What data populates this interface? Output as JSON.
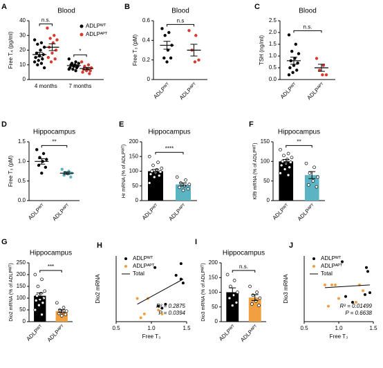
{
  "chart_data": [
    {
      "letter": "A",
      "type": "grouped_dot",
      "title": "Blood",
      "ylabel": "Free T₄ (pg/ml)",
      "ylim": [
        0,
        40
      ],
      "yticks": [
        0,
        10,
        20,
        30,
        40
      ],
      "categories": [
        "4 months",
        "7 months"
      ],
      "legend": [
        {
          "name": "ADLPᵂᵀ",
          "color": "#000000"
        },
        {
          "name": "ADLPᴬᴾᵀ",
          "color": "#d73a2e"
        }
      ],
      "groups": [
        {
          "series": 0,
          "points": [
            27,
            25,
            24,
            22,
            20,
            18,
            17,
            16,
            15,
            14,
            13,
            12,
            11,
            10,
            8
          ],
          "mean": 17,
          "sem": 1.5
        },
        {
          "series": 1,
          "points": [
            35,
            30,
            28,
            27,
            25,
            22,
            20,
            18,
            15,
            14,
            12
          ],
          "mean": 22,
          "sem": 2.3
        },
        {
          "series": 0,
          "points": [
            14,
            12,
            11,
            11,
            10,
            10,
            9,
            9,
            8,
            8,
            7,
            7,
            6
          ],
          "mean": 9.5,
          "sem": 0.6
        },
        {
          "series": 1,
          "points": [
            12,
            10,
            9,
            8,
            7,
            7,
            6,
            6,
            5,
            4
          ],
          "mean": 7.5,
          "sem": 0.8
        }
      ],
      "annotations": [
        {
          "text": "n.s.",
          "from": 0,
          "to": 1
        },
        {
          "text": "*",
          "from": 2,
          "to": 3
        }
      ]
    },
    {
      "letter": "B",
      "type": "dot",
      "title": "Blood",
      "ylabel": "Free T₃ (pM)",
      "ylim": [
        0,
        0.6
      ],
      "yticks": [
        0,
        0.2,
        0.4,
        0.6
      ],
      "groups": [
        {
          "name": "ADLPᵂᵀ",
          "color": "#000000",
          "points": [
            0.52,
            0.48,
            0.45,
            0.35,
            0.3,
            0.22,
            0.22,
            0.18
          ],
          "mean": 0.35,
          "sem": 0.04
        },
        {
          "name": "ADLPᴬᴾᵀ",
          "color": "#d73a2e",
          "points": [
            0.5,
            0.45,
            0.3,
            0.2,
            0.18
          ],
          "mean": 0.3,
          "sem": 0.06
        }
      ],
      "annotations": [
        {
          "text": "n.s",
          "from": 0,
          "to": 1
        }
      ]
    },
    {
      "letter": "C",
      "type": "dot",
      "title": "Blood",
      "ylabel": "TSH (ng/ml)",
      "ylim": [
        0,
        2.5
      ],
      "yticks": [
        {
          "value": 0,
          "label": "0.0"
        },
        0.5,
        {
          "value": 1,
          "label": "1.0"
        },
        1.5,
        {
          "value": 2,
          "label": "2.0"
        },
        2.5
      ],
      "groups": [
        {
          "name": "ADLPᵂᵀ",
          "color": "#000000",
          "points": [
            1.9,
            1.5,
            1.2,
            1.1,
            0.9,
            0.8,
            0.7,
            0.6,
            0.5,
            0.4,
            0.3,
            0.2
          ],
          "mean": 0.8,
          "sem": 0.15
        },
        {
          "name": "ADLPᴬᴾᵀ",
          "color": "#d73a2e",
          "points": [
            0.9,
            0.6,
            0.4,
            0.2,
            0.2
          ],
          "mean": 0.5,
          "sem": 0.15
        }
      ],
      "annotations": [
        {
          "text": "n.s.",
          "from": 0,
          "to": 1
        }
      ]
    },
    {
      "letter": "D",
      "type": "dot",
      "title": "Hippocampus",
      "ylabel": "Free T₃ (pM)",
      "ylim": [
        0,
        1.5
      ],
      "yticks": [
        {
          "value": 0,
          "label": "0.0"
        },
        0.5,
        {
          "value": 1,
          "label": "1.0"
        },
        1.5
      ],
      "groups": [
        {
          "name": "ADLPᵂᵀ",
          "color": "#000000",
          "points": [
            1.3,
            1.2,
            1.1,
            1.05,
            1.0,
            0.9,
            0.85,
            0.7
          ],
          "mean": 1.0,
          "sem": 0.07
        },
        {
          "name": "ADLPᴬᴾᵀ",
          "color": "#5ab4c4",
          "points": [
            0.8,
            0.75,
            0.72,
            0.7,
            0.68,
            0.65,
            0.6
          ],
          "mean": 0.7,
          "sem": 0.03
        }
      ],
      "annotations": [
        {
          "text": "**",
          "from": 0,
          "to": 1
        }
      ]
    },
    {
      "letter": "E",
      "type": "bar_dot",
      "title": "Hippocampus",
      "ylabel": "Hr mRNA (% of ADLPᵂᵀ)",
      "ylim": [
        0,
        200
      ],
      "yticks": [
        0,
        50,
        100,
        150,
        200
      ],
      "groups": [
        {
          "name": "ADLPᵂᵀ",
          "color": "#000000",
          "points": [
            150,
            130,
            120,
            110,
            105,
            100,
            98,
            95,
            90,
            85,
            80,
            60
          ],
          "mean": 100,
          "sem": 6
        },
        {
          "name": "ADLPᴬᴾᵀ",
          "color": "#5ab4c4",
          "points": [
            80,
            70,
            60,
            55,
            50,
            45,
            40,
            35
          ],
          "mean": 55,
          "sem": 5
        }
      ],
      "annotations": [
        {
          "text": "****",
          "from": 0,
          "to": 1
        }
      ]
    },
    {
      "letter": "F",
      "type": "bar_dot",
      "title": "Hippocampus",
      "ylabel": "Klf9 mRNA (% of ADLPᵂᵀ)",
      "ylim": [
        0,
        150
      ],
      "yticks": [
        0,
        50,
        100,
        150
      ],
      "groups": [
        {
          "name": "ADLPᵂᵀ",
          "color": "#000000",
          "points": [
            130,
            120,
            115,
            110,
            105,
            100,
            98,
            95,
            90,
            85,
            80,
            70,
            65
          ],
          "mean": 100,
          "sem": 5
        },
        {
          "name": "ADLPᴬᴾᵀ",
          "color": "#5ab4c4",
          "points": [
            95,
            85,
            70,
            60,
            50,
            40,
            35
          ],
          "mean": 65,
          "sem": 9
        }
      ],
      "annotations": [
        {
          "text": "**",
          "from": 0,
          "to": 1
        }
      ]
    },
    {
      "letter": "G",
      "type": "bar_dot",
      "title": "Hippocampus",
      "ylabel": "Dio2 mRNA (% of ADLPᵂᵀ)",
      "ylim": [
        0,
        250
      ],
      "yticks": [
        0,
        50,
        100,
        150,
        200,
        250
      ],
      "groups": [
        {
          "name": "ADLPᵂᵀ",
          "color": "#000000",
          "points": [
            200,
            180,
            150,
            130,
            120,
            110,
            100,
            95,
            90,
            80,
            70,
            50,
            30
          ],
          "mean": 110,
          "sem": 12
        },
        {
          "name": "ADLPᴬᴾᵀ",
          "color": "#f0a040",
          "points": [
            80,
            60,
            50,
            45,
            40,
            35,
            30,
            25
          ],
          "mean": 45,
          "sem": 6
        }
      ],
      "annotations": [
        {
          "text": "***",
          "from": 0,
          "to": 1
        }
      ]
    },
    {
      "letter": "H",
      "type": "scatter",
      "ylabel": "Dio2 mRNA",
      "xlabel": "Free T₃",
      "xlim": [
        0.5,
        1.5
      ],
      "xticks": [
        0.5,
        {
          "value": 1,
          "label": "1.0"
        },
        1.5
      ],
      "ylim": [
        0,
        170
      ],
      "series": [
        {
          "name": "ADLPᵂᵀ",
          "color": "#000000",
          "x": [
            1.05,
            1.35,
            1.42,
            1.45,
            1.42,
            1.1,
            1.15,
            1.2
          ],
          "y": [
            140,
            120,
            150,
            100,
            110,
            40,
            35,
            45
          ]
        },
        {
          "name": "ADLPᴬᴾᵀ",
          "color": "#f0a040",
          "x": [
            0.8,
            0.95,
            0.9,
            1.1,
            1.15,
            0.85
          ],
          "y": [
            60,
            60,
            20,
            30,
            20,
            10
          ]
        },
        {
          "name": "Total",
          "color": "#000000",
          "line": true,
          "x": [
            0.8,
            1.45
          ],
          "y": [
            45,
            110
          ]
        }
      ],
      "annotations": [
        "R² = 0.2875",
        "P = 0.0394"
      ]
    },
    {
      "letter": "I",
      "type": "bar_dot",
      "title": "Hippocampus",
      "ylabel": "Dio3 mRNA (% of ADLPᵂᵀ)",
      "ylim": [
        0,
        200
      ],
      "yticks": [
        0,
        50,
        100,
        150,
        200
      ],
      "groups": [
        {
          "name": "ADLPᵂᵀ",
          "color": "#000000",
          "points": [
            160,
            140,
            120,
            100,
            90,
            80,
            65,
            55
          ],
          "mean": 100,
          "sem": 15
        },
        {
          "name": "ADLPᴬᴾᵀ",
          "color": "#f0a040",
          "points": [
            120,
            100,
            90,
            80,
            70,
            60,
            55
          ],
          "mean": 82,
          "sem": 10
        }
      ],
      "annotations": [
        {
          "text": "n.s.",
          "from": 0,
          "to": 1
        }
      ]
    },
    {
      "letter": "J",
      "type": "scatter",
      "ylabel": "Dio3 mRNA",
      "xlabel": "Free T₃",
      "xlim": [
        0.5,
        1.5
      ],
      "xticks": [
        0.5,
        {
          "value": 1,
          "label": "1.0"
        },
        1.5
      ],
      "ylim": [
        0,
        170
      ],
      "series": [
        {
          "name": "ADLPᵂᵀ",
          "color": "#000000",
          "x": [
            1.05,
            1.1,
            1.4,
            1.42,
            1.38,
            1.45,
            1.2
          ],
          "y": [
            155,
            65,
            140,
            130,
            70,
            75,
            50
          ]
        },
        {
          "name": "ADLPᴬᴾᵀ",
          "color": "#f0a040",
          "x": [
            0.8,
            0.85,
            0.9,
            0.95,
            1.0,
            1.25,
            1.3,
            1.35
          ],
          "y": [
            95,
            40,
            95,
            95,
            60,
            50,
            95,
            80
          ]
        },
        {
          "name": "Total",
          "color": "#000000",
          "line": true,
          "x": [
            0.8,
            1.45
          ],
          "y": [
            88,
            95
          ]
        }
      ],
      "annotations": [
        "R² = 0.01499",
        "P = 0.6638"
      ]
    }
  ]
}
